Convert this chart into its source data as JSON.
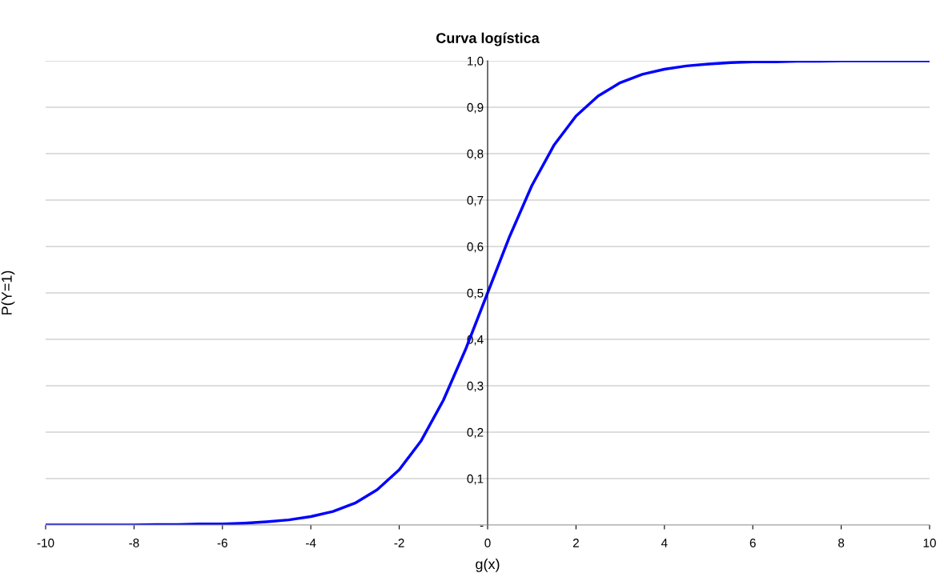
{
  "chart_data": {
    "type": "line",
    "title": "Curva logística",
    "xlabel": "g(x)",
    "ylabel": "P(Y=1)",
    "x": [
      -10,
      -9.5,
      -9,
      -8.5,
      -8,
      -7.5,
      -7,
      -6.5,
      -6,
      -5.5,
      -5,
      -4.5,
      -4,
      -3.5,
      -3,
      -2.5,
      -2,
      -1.5,
      -1,
      -0.5,
      0,
      0.5,
      1,
      1.5,
      2,
      2.5,
      3,
      3.5,
      4,
      4.5,
      5,
      5.5,
      6,
      6.5,
      7,
      7.5,
      8,
      8.5,
      9,
      9.5,
      10
    ],
    "series": [
      {
        "color": "#0000ff",
        "values": [
          0.0,
          0.0,
          0.0,
          0.0,
          0.0,
          0.001,
          0.001,
          0.002,
          0.002,
          0.004,
          0.007,
          0.011,
          0.018,
          0.029,
          0.047,
          0.076,
          0.119,
          0.182,
          0.269,
          0.378,
          0.5,
          0.622,
          0.731,
          0.818,
          0.881,
          0.924,
          0.953,
          0.971,
          0.982,
          0.989,
          0.993,
          0.996,
          0.998,
          0.998,
          0.999,
          0.999,
          1.0,
          1.0,
          1.0,
          1.0,
          1.0
        ]
      }
    ],
    "xlim": [
      -10,
      10
    ],
    "xticks": [
      -10,
      -8,
      -6,
      -4,
      -2,
      0,
      2,
      4,
      6,
      8,
      10
    ],
    "ylim": [
      0,
      1
    ],
    "yticks": [
      {
        "value": 0,
        "label": "-"
      },
      {
        "value": 0.1,
        "label": "0,1"
      },
      {
        "value": 0.2,
        "label": "0,2"
      },
      {
        "value": 0.3,
        "label": "0,3"
      },
      {
        "value": 0.4,
        "label": "0,4"
      },
      {
        "value": 0.5,
        "label": "0,5"
      },
      {
        "value": 0.6,
        "label": "0,6"
      },
      {
        "value": 0.7,
        "label": "0,7"
      },
      {
        "value": 0.8,
        "label": "0,8"
      },
      {
        "value": 0.9,
        "label": "0,9"
      },
      {
        "value": 1.0,
        "label": "1,0"
      }
    ],
    "grid": "y",
    "marker": "none",
    "line_style": "solid"
  }
}
